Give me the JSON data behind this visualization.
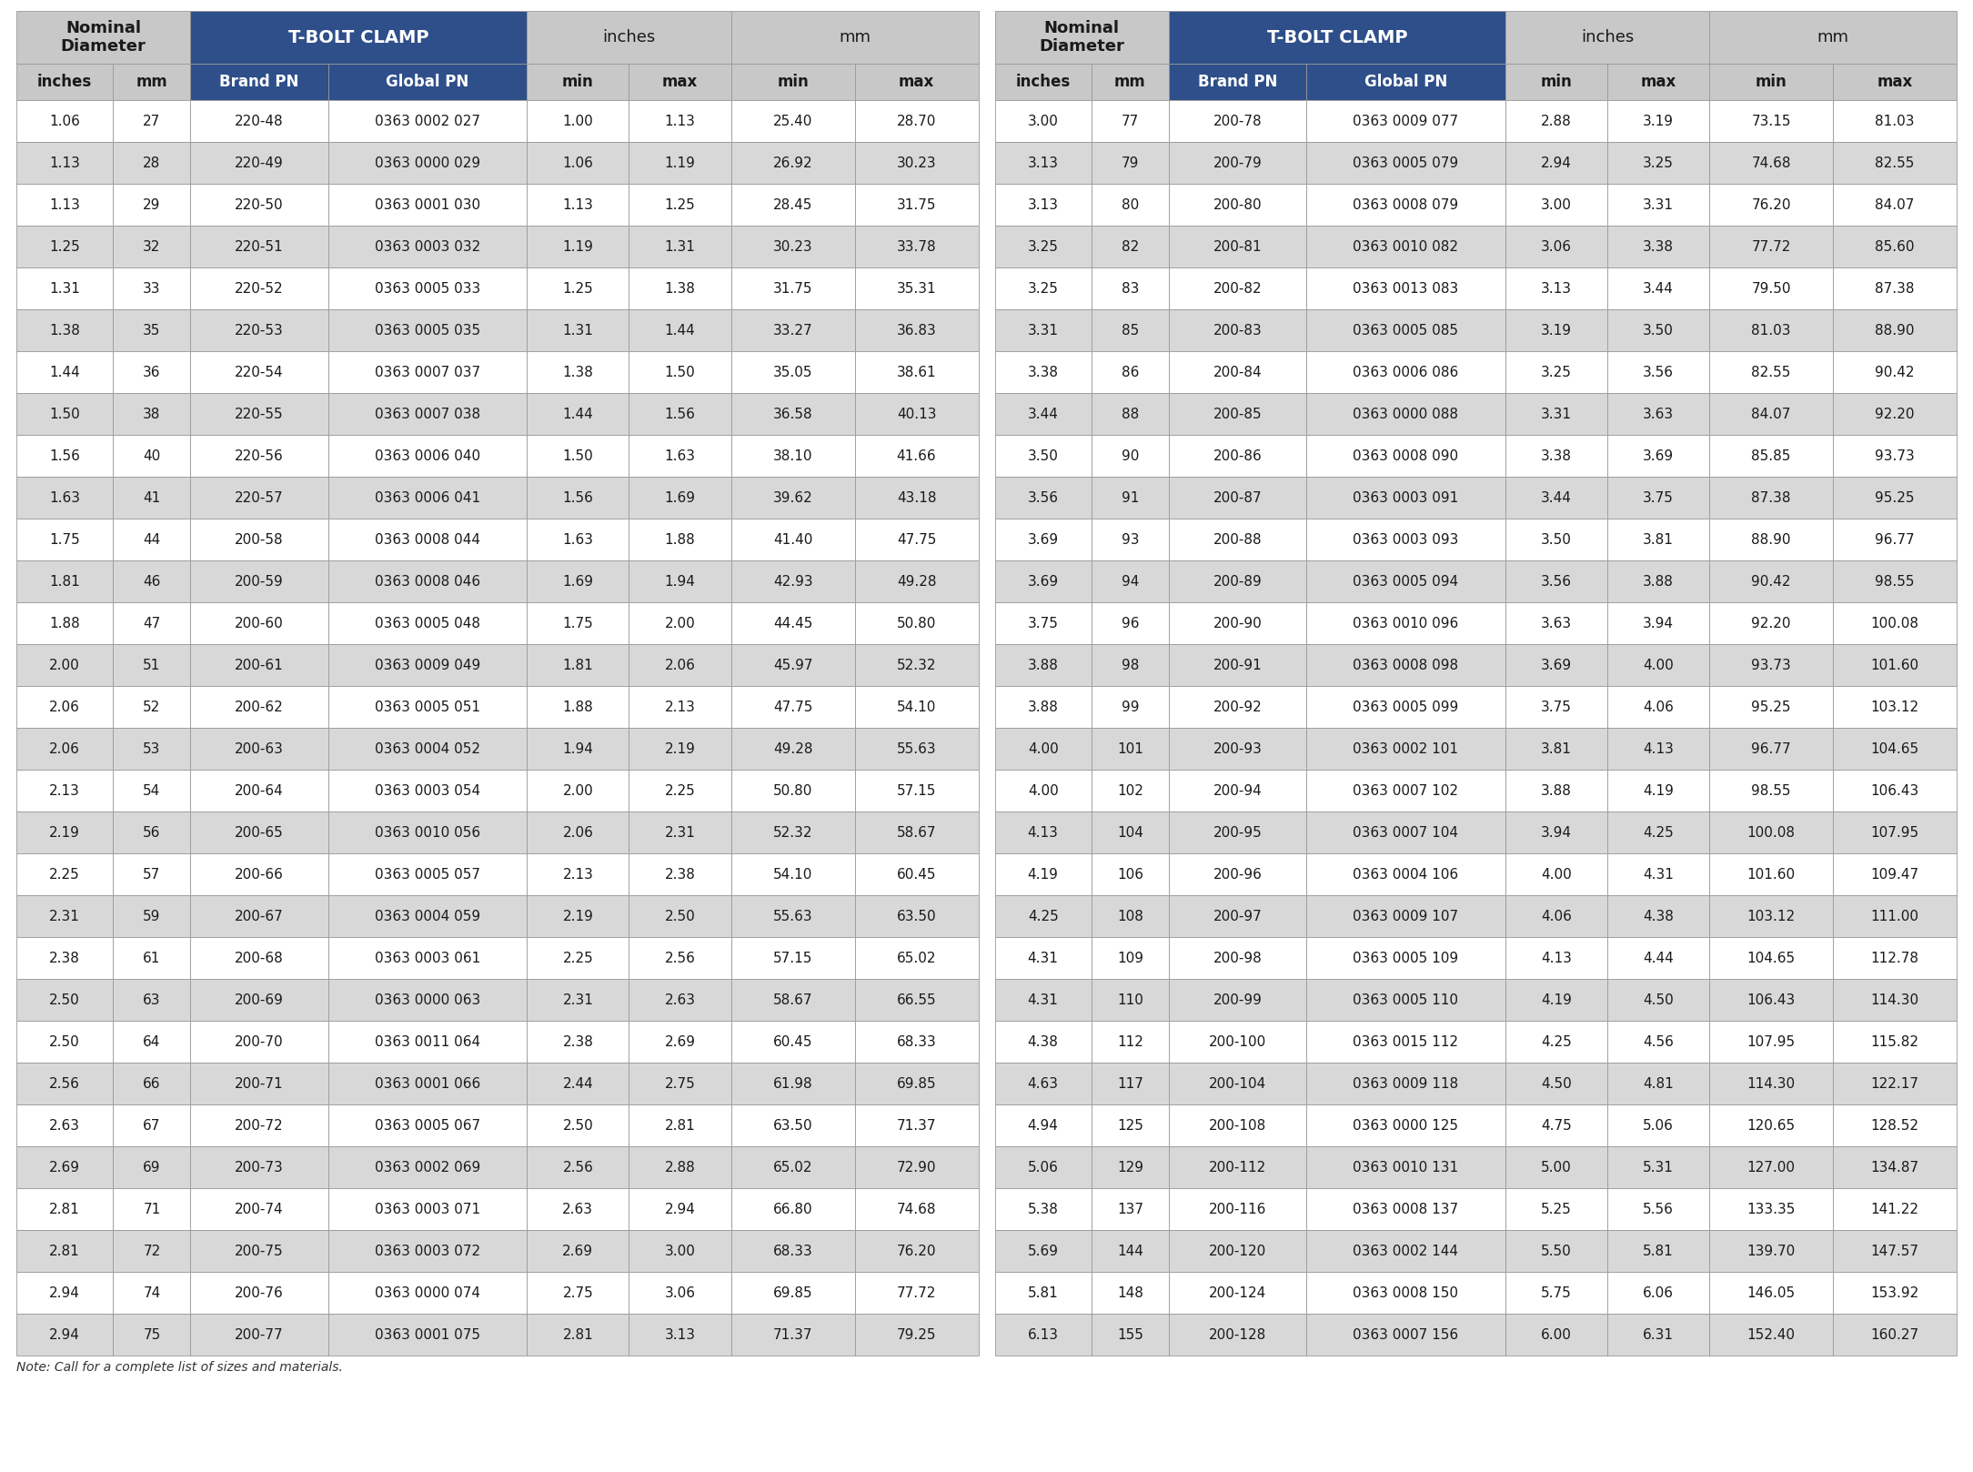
{
  "note": "Note: Call for a complete list of sizes and materials.",
  "header_bg_nominal": "#c8c8c8",
  "header_bg_tbolt": "#2e4f8a",
  "header_bg_inchesmm": "#c8c8c8",
  "subhdr_bg": "#2e4f8a",
  "row_bg_even": "#ffffff",
  "row_bg_odd": "#d8d8d8",
  "border_color": "#999999",
  "dark_text": "#1a1a1a",
  "white_text": "#ffffff",
  "left_table": [
    [
      "1.06",
      "27",
      "220-48",
      "0363 0002 027",
      "1.00",
      "1.13",
      "25.40",
      "28.70"
    ],
    [
      "1.13",
      "28",
      "220-49",
      "0363 0000 029",
      "1.06",
      "1.19",
      "26.92",
      "30.23"
    ],
    [
      "1.13",
      "29",
      "220-50",
      "0363 0001 030",
      "1.13",
      "1.25",
      "28.45",
      "31.75"
    ],
    [
      "1.25",
      "32",
      "220-51",
      "0363 0003 032",
      "1.19",
      "1.31",
      "30.23",
      "33.78"
    ],
    [
      "1.31",
      "33",
      "220-52",
      "0363 0005 033",
      "1.25",
      "1.38",
      "31.75",
      "35.31"
    ],
    [
      "1.38",
      "35",
      "220-53",
      "0363 0005 035",
      "1.31",
      "1.44",
      "33.27",
      "36.83"
    ],
    [
      "1.44",
      "36",
      "220-54",
      "0363 0007 037",
      "1.38",
      "1.50",
      "35.05",
      "38.61"
    ],
    [
      "1.50",
      "38",
      "220-55",
      "0363 0007 038",
      "1.44",
      "1.56",
      "36.58",
      "40.13"
    ],
    [
      "1.56",
      "40",
      "220-56",
      "0363 0006 040",
      "1.50",
      "1.63",
      "38.10",
      "41.66"
    ],
    [
      "1.63",
      "41",
      "220-57",
      "0363 0006 041",
      "1.56",
      "1.69",
      "39.62",
      "43.18"
    ],
    [
      "1.75",
      "44",
      "200-58",
      "0363 0008 044",
      "1.63",
      "1.88",
      "41.40",
      "47.75"
    ],
    [
      "1.81",
      "46",
      "200-59",
      "0363 0008 046",
      "1.69",
      "1.94",
      "42.93",
      "49.28"
    ],
    [
      "1.88",
      "47",
      "200-60",
      "0363 0005 048",
      "1.75",
      "2.00",
      "44.45",
      "50.80"
    ],
    [
      "2.00",
      "51",
      "200-61",
      "0363 0009 049",
      "1.81",
      "2.06",
      "45.97",
      "52.32"
    ],
    [
      "2.06",
      "52",
      "200-62",
      "0363 0005 051",
      "1.88",
      "2.13",
      "47.75",
      "54.10"
    ],
    [
      "2.06",
      "53",
      "200-63",
      "0363 0004 052",
      "1.94",
      "2.19",
      "49.28",
      "55.63"
    ],
    [
      "2.13",
      "54",
      "200-64",
      "0363 0003 054",
      "2.00",
      "2.25",
      "50.80",
      "57.15"
    ],
    [
      "2.19",
      "56",
      "200-65",
      "0363 0010 056",
      "2.06",
      "2.31",
      "52.32",
      "58.67"
    ],
    [
      "2.25",
      "57",
      "200-66",
      "0363 0005 057",
      "2.13",
      "2.38",
      "54.10",
      "60.45"
    ],
    [
      "2.31",
      "59",
      "200-67",
      "0363 0004 059",
      "2.19",
      "2.50",
      "55.63",
      "63.50"
    ],
    [
      "2.38",
      "61",
      "200-68",
      "0363 0003 061",
      "2.25",
      "2.56",
      "57.15",
      "65.02"
    ],
    [
      "2.50",
      "63",
      "200-69",
      "0363 0000 063",
      "2.31",
      "2.63",
      "58.67",
      "66.55"
    ],
    [
      "2.50",
      "64",
      "200-70",
      "0363 0011 064",
      "2.38",
      "2.69",
      "60.45",
      "68.33"
    ],
    [
      "2.56",
      "66",
      "200-71",
      "0363 0001 066",
      "2.44",
      "2.75",
      "61.98",
      "69.85"
    ],
    [
      "2.63",
      "67",
      "200-72",
      "0363 0005 067",
      "2.50",
      "2.81",
      "63.50",
      "71.37"
    ],
    [
      "2.69",
      "69",
      "200-73",
      "0363 0002 069",
      "2.56",
      "2.88",
      "65.02",
      "72.90"
    ],
    [
      "2.81",
      "71",
      "200-74",
      "0363 0003 071",
      "2.63",
      "2.94",
      "66.80",
      "74.68"
    ],
    [
      "2.81",
      "72",
      "200-75",
      "0363 0003 072",
      "2.69",
      "3.00",
      "68.33",
      "76.20"
    ],
    [
      "2.94",
      "74",
      "200-76",
      "0363 0000 074",
      "2.75",
      "3.06",
      "69.85",
      "77.72"
    ],
    [
      "2.94",
      "75",
      "200-77",
      "0363 0001 075",
      "2.81",
      "3.13",
      "71.37",
      "79.25"
    ]
  ],
  "right_table": [
    [
      "3.00",
      "77",
      "200-78",
      "0363 0009 077",
      "2.88",
      "3.19",
      "73.15",
      "81.03"
    ],
    [
      "3.13",
      "79",
      "200-79",
      "0363 0005 079",
      "2.94",
      "3.25",
      "74.68",
      "82.55"
    ],
    [
      "3.13",
      "80",
      "200-80",
      "0363 0008 079",
      "3.00",
      "3.31",
      "76.20",
      "84.07"
    ],
    [
      "3.25",
      "82",
      "200-81",
      "0363 0010 082",
      "3.06",
      "3.38",
      "77.72",
      "85.60"
    ],
    [
      "3.25",
      "83",
      "200-82",
      "0363 0013 083",
      "3.13",
      "3.44",
      "79.50",
      "87.38"
    ],
    [
      "3.31",
      "85",
      "200-83",
      "0363 0005 085",
      "3.19",
      "3.50",
      "81.03",
      "88.90"
    ],
    [
      "3.38",
      "86",
      "200-84",
      "0363 0006 086",
      "3.25",
      "3.56",
      "82.55",
      "90.42"
    ],
    [
      "3.44",
      "88",
      "200-85",
      "0363 0000 088",
      "3.31",
      "3.63",
      "84.07",
      "92.20"
    ],
    [
      "3.50",
      "90",
      "200-86",
      "0363 0008 090",
      "3.38",
      "3.69",
      "85.85",
      "93.73"
    ],
    [
      "3.56",
      "91",
      "200-87",
      "0363 0003 091",
      "3.44",
      "3.75",
      "87.38",
      "95.25"
    ],
    [
      "3.69",
      "93",
      "200-88",
      "0363 0003 093",
      "3.50",
      "3.81",
      "88.90",
      "96.77"
    ],
    [
      "3.69",
      "94",
      "200-89",
      "0363 0005 094",
      "3.56",
      "3.88",
      "90.42",
      "98.55"
    ],
    [
      "3.75",
      "96",
      "200-90",
      "0363 0010 096",
      "3.63",
      "3.94",
      "92.20",
      "100.08"
    ],
    [
      "3.88",
      "98",
      "200-91",
      "0363 0008 098",
      "3.69",
      "4.00",
      "93.73",
      "101.60"
    ],
    [
      "3.88",
      "99",
      "200-92",
      "0363 0005 099",
      "3.75",
      "4.06",
      "95.25",
      "103.12"
    ],
    [
      "4.00",
      "101",
      "200-93",
      "0363 0002 101",
      "3.81",
      "4.13",
      "96.77",
      "104.65"
    ],
    [
      "4.00",
      "102",
      "200-94",
      "0363 0007 102",
      "3.88",
      "4.19",
      "98.55",
      "106.43"
    ],
    [
      "4.13",
      "104",
      "200-95",
      "0363 0007 104",
      "3.94",
      "4.25",
      "100.08",
      "107.95"
    ],
    [
      "4.19",
      "106",
      "200-96",
      "0363 0004 106",
      "4.00",
      "4.31",
      "101.60",
      "109.47"
    ],
    [
      "4.25",
      "108",
      "200-97",
      "0363 0009 107",
      "4.06",
      "4.38",
      "103.12",
      "111.00"
    ],
    [
      "4.31",
      "109",
      "200-98",
      "0363 0005 109",
      "4.13",
      "4.44",
      "104.65",
      "112.78"
    ],
    [
      "4.31",
      "110",
      "200-99",
      "0363 0005 110",
      "4.19",
      "4.50",
      "106.43",
      "114.30"
    ],
    [
      "4.38",
      "112",
      "200-100",
      "0363 0015 112",
      "4.25",
      "4.56",
      "107.95",
      "115.82"
    ],
    [
      "4.63",
      "117",
      "200-104",
      "0363 0009 118",
      "4.50",
      "4.81",
      "114.30",
      "122.17"
    ],
    [
      "4.94",
      "125",
      "200-108",
      "0363 0000 125",
      "4.75",
      "5.06",
      "120.65",
      "128.52"
    ],
    [
      "5.06",
      "129",
      "200-112",
      "0363 0010 131",
      "5.00",
      "5.31",
      "127.00",
      "134.87"
    ],
    [
      "5.38",
      "137",
      "200-116",
      "0363 0008 137",
      "5.25",
      "5.56",
      "133.35",
      "141.22"
    ],
    [
      "5.69",
      "144",
      "200-120",
      "0363 0002 144",
      "5.50",
      "5.81",
      "139.70",
      "147.57"
    ],
    [
      "5.81",
      "148",
      "200-124",
      "0363 0008 150",
      "5.75",
      "6.06",
      "146.05",
      "153.92"
    ],
    [
      "6.13",
      "155",
      "200-128",
      "0363 0007 156",
      "6.00",
      "6.31",
      "152.40",
      "160.27"
    ]
  ]
}
